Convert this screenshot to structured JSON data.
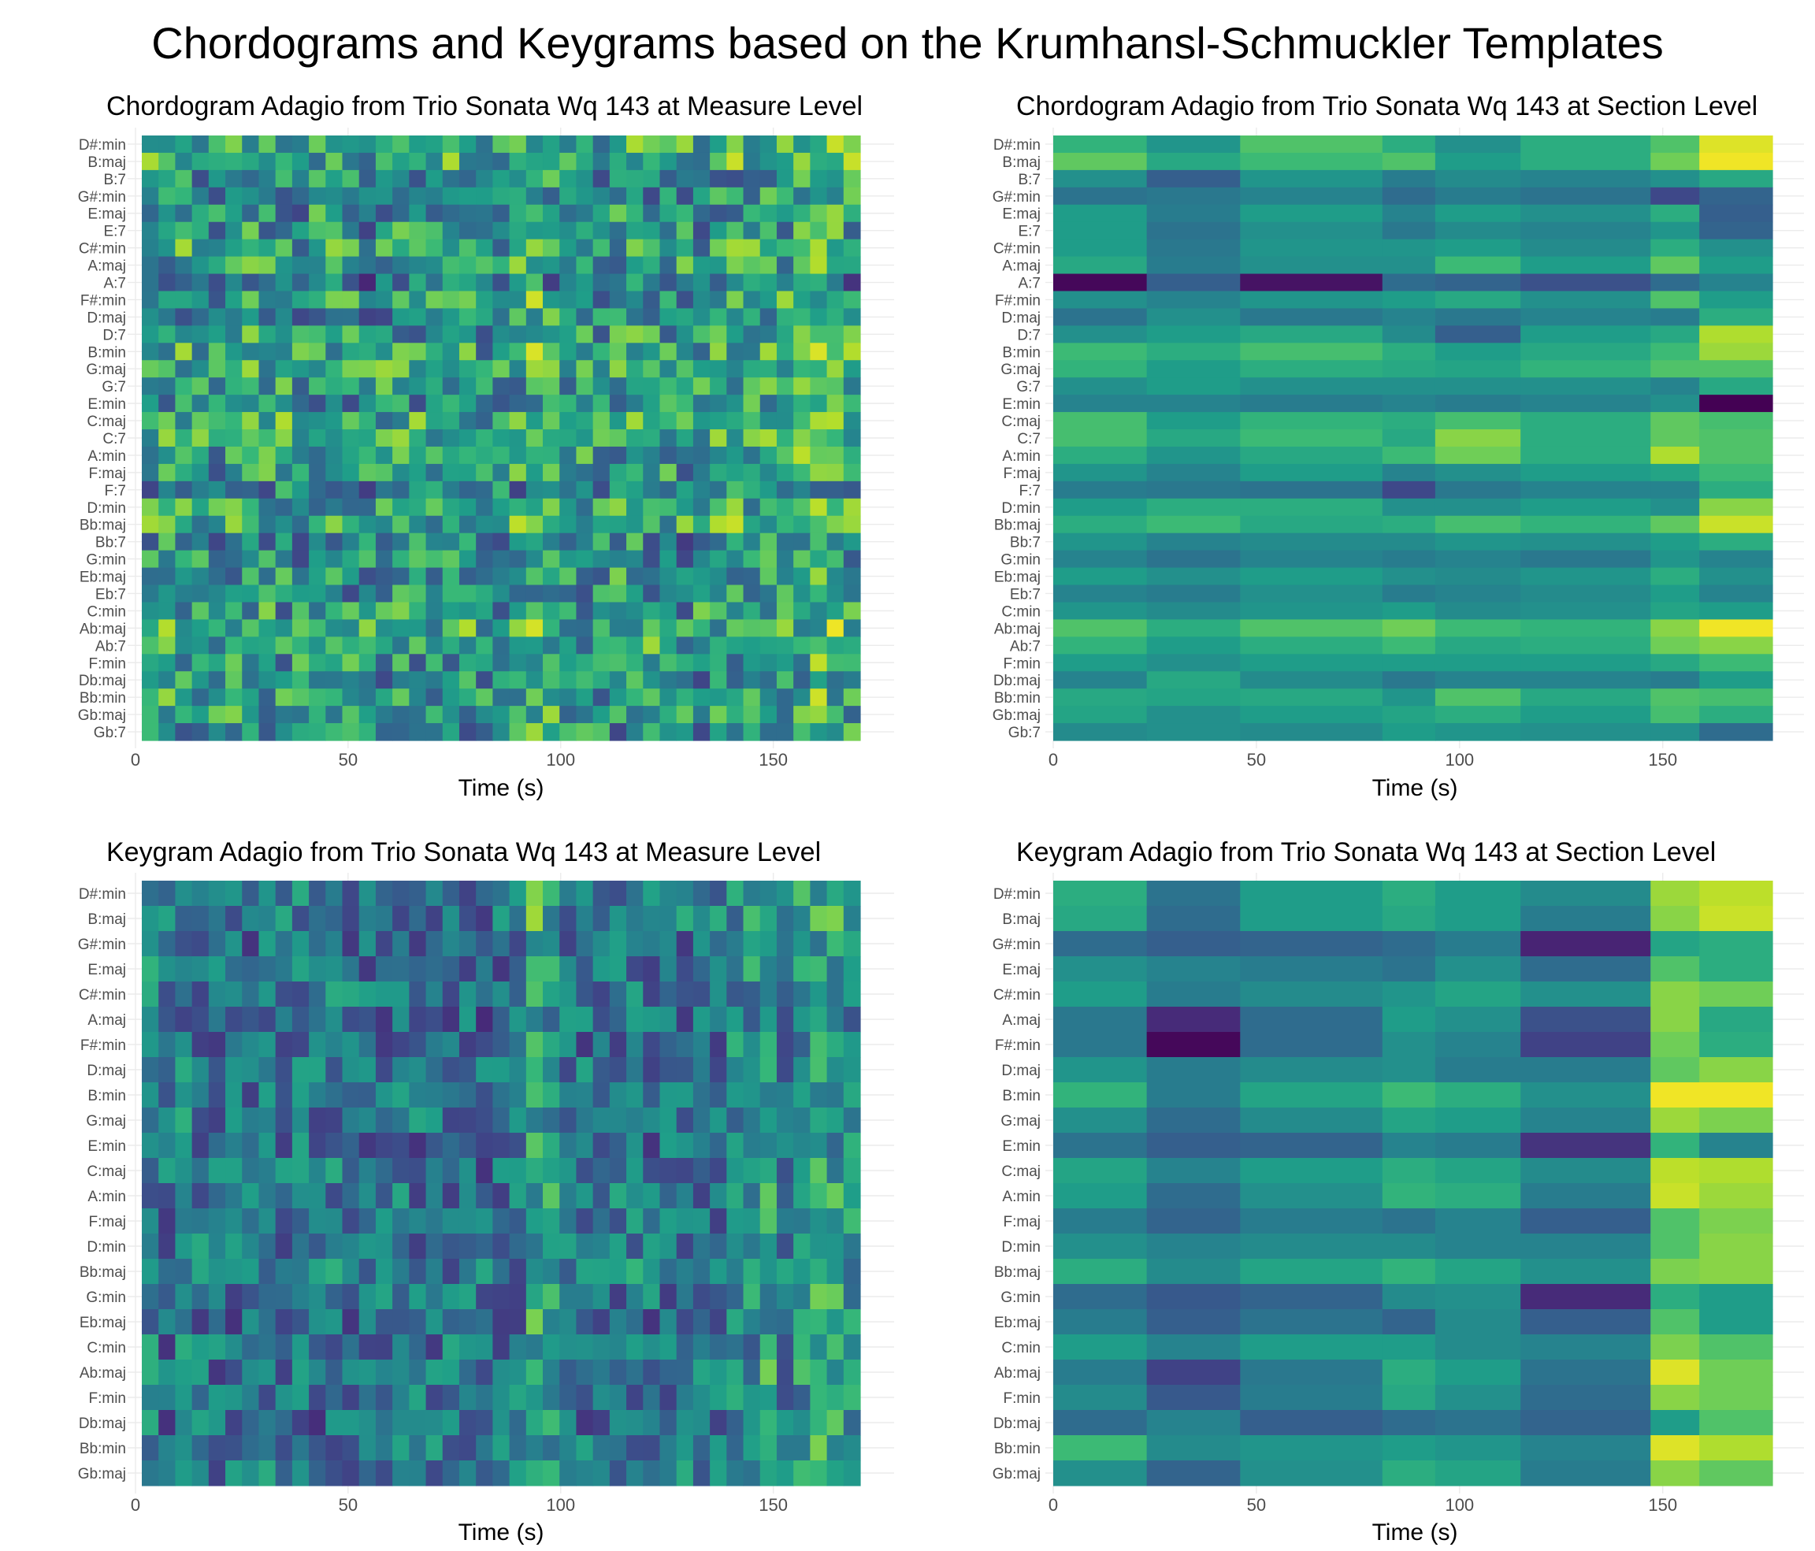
{
  "figure_title": "Chordograms and Keygrams based on the Krumhansl-Schmuckler Templates",
  "colormap": {
    "name": "viridis",
    "stops": [
      "#440154",
      "#482878",
      "#3e4989",
      "#31688e",
      "#26828e",
      "#1f9e89",
      "#35b779",
      "#6ece58",
      "#b5de2b",
      "#fde725"
    ]
  },
  "chart_data": [
    {
      "type": "heatmap",
      "title": "Chordogram Adagio from Trio Sonata Wq 143 at Measure Level",
      "xlabel": "Time (s)",
      "ylabel": "",
      "x_ticks": [
        0,
        50,
        100,
        150
      ],
      "xlim": [
        0,
        171
      ],
      "columns": 43,
      "y_categories": [
        "D#:min",
        "B:maj",
        "B:7",
        "G#:min",
        "E:maj",
        "E:7",
        "C#:min",
        "A:maj",
        "A:7",
        "F#:min",
        "D:maj",
        "D:7",
        "B:min",
        "G:maj",
        "G:7",
        "E:min",
        "C:maj",
        "C:7",
        "A:min",
        "F:maj",
        "F:7",
        "D:min",
        "Bb:maj",
        "Bb:7",
        "G:min",
        "Eb:maj",
        "Eb:7",
        "C:min",
        "Ab:maj",
        "Ab:7",
        "F:min",
        "Db:maj",
        "Bb:min",
        "Gb:maj",
        "Gb:7"
      ],
      "row_levels": [
        0.72,
        0.7,
        0.45,
        0.42,
        0.52,
        0.48,
        0.58,
        0.62,
        0.25,
        0.6,
        0.45,
        0.55,
        0.62,
        0.65,
        0.55,
        0.45,
        0.7,
        0.72,
        0.62,
        0.55,
        0.4,
        0.6,
        0.7,
        0.45,
        0.45,
        0.55,
        0.45,
        0.55,
        0.72,
        0.65,
        0.55,
        0.45,
        0.62,
        0.58,
        0.45
      ],
      "column_levels": [
        0.55,
        0.5,
        0.6,
        0.55,
        0.45,
        0.5,
        0.6,
        0.55,
        0.5,
        0.45,
        0.5,
        0.55,
        0.5,
        0.45,
        0.5,
        0.55,
        0.5,
        0.45,
        0.5,
        0.5,
        0.45,
        0.5,
        0.55,
        0.72,
        0.65,
        0.55,
        0.5,
        0.45,
        0.5,
        0.55,
        0.5,
        0.5,
        0.45,
        0.5,
        0.55,
        0.6,
        0.65,
        0.6,
        0.55,
        0.65,
        0.72,
        0.7,
        0.6
      ],
      "variation": 0.28,
      "seed": 11
    },
    {
      "type": "heatmap",
      "title": "Chordogram Adagio from Trio Sonata Wq 143 at Section Level",
      "xlabel": "Time (s)",
      "ylabel": "",
      "x_ticks": [
        0,
        50,
        100,
        150
      ],
      "xlim": [
        0,
        177
      ],
      "x_edges": [
        0,
        23,
        46,
        81,
        94,
        115,
        147,
        159,
        177
      ],
      "y_categories": [
        "D#:min",
        "B:maj",
        "B:7",
        "G#:min",
        "E:maj",
        "E:7",
        "C#:min",
        "A:maj",
        "A:7",
        "F#:min",
        "D:maj",
        "D:7",
        "B:min",
        "G:maj",
        "G:7",
        "E:min",
        "C:maj",
        "C:7",
        "A:min",
        "F:maj",
        "F:7",
        "D:min",
        "Bb:maj",
        "Bb:7",
        "G:min",
        "Eb:maj",
        "Eb:7",
        "C:min",
        "Ab:maj",
        "Ab:7",
        "F:min",
        "Db:maj",
        "Bb:min",
        "Gb:maj",
        "Gb:7"
      ],
      "values": [
        [
          0.65,
          0.52,
          0.72,
          0.62,
          0.5,
          0.62,
          0.72,
          0.95
        ],
        [
          0.75,
          0.6,
          0.68,
          0.72,
          0.55,
          0.62,
          0.78,
          0.98
        ],
        [
          0.5,
          0.3,
          0.52,
          0.42,
          0.48,
          0.45,
          0.5,
          0.6
        ],
        [
          0.38,
          0.4,
          0.45,
          0.35,
          0.42,
          0.38,
          0.22,
          0.32
        ],
        [
          0.55,
          0.42,
          0.55,
          0.45,
          0.55,
          0.5,
          0.62,
          0.3
        ],
        [
          0.55,
          0.38,
          0.5,
          0.4,
          0.48,
          0.45,
          0.52,
          0.32
        ],
        [
          0.55,
          0.4,
          0.52,
          0.52,
          0.55,
          0.48,
          0.62,
          0.5
        ],
        [
          0.6,
          0.42,
          0.5,
          0.5,
          0.68,
          0.55,
          0.75,
          0.55
        ],
        [
          0.02,
          0.3,
          0.05,
          0.35,
          0.32,
          0.25,
          0.35,
          0.45
        ],
        [
          0.5,
          0.45,
          0.52,
          0.55,
          0.6,
          0.5,
          0.72,
          0.55
        ],
        [
          0.38,
          0.5,
          0.4,
          0.45,
          0.4,
          0.45,
          0.42,
          0.62
        ],
        [
          0.5,
          0.55,
          0.6,
          0.48,
          0.3,
          0.55,
          0.6,
          0.88
        ],
        [
          0.68,
          0.62,
          0.7,
          0.62,
          0.55,
          0.6,
          0.68,
          0.85
        ],
        [
          0.65,
          0.55,
          0.62,
          0.6,
          0.58,
          0.65,
          0.72,
          0.72
        ],
        [
          0.5,
          0.55,
          0.5,
          0.5,
          0.5,
          0.5,
          0.45,
          0.6
        ],
        [
          0.45,
          0.45,
          0.42,
          0.45,
          0.42,
          0.45,
          0.5,
          0.0
        ],
        [
          0.7,
          0.55,
          0.65,
          0.62,
          0.7,
          0.62,
          0.75,
          0.7
        ],
        [
          0.7,
          0.6,
          0.68,
          0.6,
          0.82,
          0.62,
          0.75,
          0.72
        ],
        [
          0.62,
          0.52,
          0.6,
          0.68,
          0.78,
          0.62,
          0.88,
          0.72
        ],
        [
          0.52,
          0.45,
          0.55,
          0.45,
          0.5,
          0.55,
          0.58,
          0.68
        ],
        [
          0.42,
          0.4,
          0.38,
          0.22,
          0.4,
          0.45,
          0.45,
          0.62
        ],
        [
          0.55,
          0.62,
          0.62,
          0.5,
          0.5,
          0.55,
          0.5,
          0.82
        ],
        [
          0.62,
          0.68,
          0.6,
          0.62,
          0.7,
          0.65,
          0.75,
          0.92
        ],
        [
          0.52,
          0.45,
          0.48,
          0.48,
          0.52,
          0.5,
          0.55,
          0.62
        ],
        [
          0.45,
          0.38,
          0.45,
          0.42,
          0.45,
          0.4,
          0.52,
          0.45
        ],
        [
          0.55,
          0.5,
          0.55,
          0.5,
          0.48,
          0.52,
          0.62,
          0.5
        ],
        [
          0.45,
          0.42,
          0.5,
          0.42,
          0.45,
          0.48,
          0.55,
          0.45
        ],
        [
          0.52,
          0.48,
          0.52,
          0.55,
          0.48,
          0.5,
          0.58,
          0.55
        ],
        [
          0.72,
          0.62,
          0.72,
          0.78,
          0.68,
          0.65,
          0.82,
          0.98
        ],
        [
          0.65,
          0.55,
          0.62,
          0.68,
          0.6,
          0.62,
          0.78,
          0.82
        ],
        [
          0.55,
          0.5,
          0.55,
          0.55,
          0.55,
          0.55,
          0.6,
          0.68
        ],
        [
          0.45,
          0.6,
          0.48,
          0.4,
          0.45,
          0.45,
          0.42,
          0.55
        ],
        [
          0.6,
          0.58,
          0.6,
          0.52,
          0.72,
          0.6,
          0.72,
          0.7
        ],
        [
          0.58,
          0.5,
          0.55,
          0.58,
          0.62,
          0.55,
          0.7,
          0.62
        ],
        [
          0.48,
          0.5,
          0.48,
          0.55,
          0.52,
          0.5,
          0.5,
          0.35
        ]
      ]
    },
    {
      "type": "heatmap",
      "title": "Keygram Adagio from Trio Sonata Wq 143 at Measure Level",
      "xlabel": "Time (s)",
      "ylabel": "",
      "x_ticks": [
        0,
        50,
        100,
        150
      ],
      "xlim": [
        0,
        171
      ],
      "columns": 43,
      "y_categories": [
        "D#:min",
        "B:maj",
        "G#:min",
        "E:maj",
        "C#:min",
        "A:maj",
        "F#:min",
        "D:maj",
        "B:min",
        "G:maj",
        "E:min",
        "C:maj",
        "A:min",
        "F:maj",
        "D:min",
        "Bb:maj",
        "G:min",
        "Eb:maj",
        "C:min",
        "Ab:maj",
        "F:min",
        "Db:maj",
        "Bb:min",
        "Gb:maj"
      ],
      "row_levels": [
        0.45,
        0.45,
        0.35,
        0.4,
        0.42,
        0.32,
        0.35,
        0.42,
        0.42,
        0.42,
        0.32,
        0.42,
        0.4,
        0.38,
        0.4,
        0.45,
        0.38,
        0.35,
        0.42,
        0.4,
        0.38,
        0.35,
        0.42,
        0.42
      ],
      "column_levels": [
        0.5,
        0.3,
        0.48,
        0.42,
        0.35,
        0.32,
        0.35,
        0.4,
        0.38,
        0.42,
        0.35,
        0.4,
        0.35,
        0.32,
        0.4,
        0.35,
        0.4,
        0.35,
        0.38,
        0.35,
        0.3,
        0.32,
        0.38,
        0.82,
        0.72,
        0.45,
        0.38,
        0.32,
        0.4,
        0.45,
        0.38,
        0.4,
        0.42,
        0.38,
        0.4,
        0.52,
        0.55,
        0.82,
        0.45,
        0.62,
        0.78,
        0.72,
        0.62
      ],
      "variation": 0.22,
      "seed": 23
    },
    {
      "type": "heatmap",
      "title": "Keygram Adagio from Trio Sonata Wq 143 at Section Level",
      "xlabel": "Time (s)",
      "ylabel": "",
      "x_ticks": [
        0,
        50,
        100,
        150
      ],
      "xlim": [
        0,
        177
      ],
      "x_edges": [
        0,
        23,
        46,
        81,
        94,
        115,
        147,
        159,
        177
      ],
      "y_categories": [
        "D#:min",
        "B:maj",
        "G#:min",
        "E:maj",
        "C#:min",
        "A:maj",
        "F#:min",
        "D:maj",
        "B:min",
        "G:maj",
        "E:min",
        "C:maj",
        "A:min",
        "F:maj",
        "D:min",
        "Bb:maj",
        "G:min",
        "Eb:maj",
        "C:min",
        "Ab:maj",
        "F:min",
        "Db:maj",
        "Bb:min",
        "Gb:maj"
      ],
      "values": [
        [
          0.62,
          0.38,
          0.55,
          0.62,
          0.55,
          0.48,
          0.85,
          0.9
        ],
        [
          0.6,
          0.35,
          0.55,
          0.6,
          0.55,
          0.42,
          0.82,
          0.92
        ],
        [
          0.35,
          0.3,
          0.32,
          0.35,
          0.42,
          0.1,
          0.58,
          0.62
        ],
        [
          0.5,
          0.45,
          0.42,
          0.38,
          0.5,
          0.35,
          0.72,
          0.62
        ],
        [
          0.55,
          0.42,
          0.48,
          0.52,
          0.58,
          0.5,
          0.82,
          0.78
        ],
        [
          0.4,
          0.12,
          0.35,
          0.55,
          0.5,
          0.25,
          0.82,
          0.6
        ],
        [
          0.4,
          0.02,
          0.35,
          0.5,
          0.45,
          0.2,
          0.78,
          0.62
        ],
        [
          0.52,
          0.42,
          0.48,
          0.5,
          0.42,
          0.42,
          0.75,
          0.82
        ],
        [
          0.65,
          0.42,
          0.58,
          0.68,
          0.62,
          0.5,
          0.98,
          0.98
        ],
        [
          0.5,
          0.35,
          0.48,
          0.58,
          0.55,
          0.45,
          0.85,
          0.8
        ],
        [
          0.38,
          0.3,
          0.32,
          0.45,
          0.42,
          0.15,
          0.65,
          0.45
        ],
        [
          0.58,
          0.45,
          0.55,
          0.62,
          0.58,
          0.48,
          0.9,
          0.88
        ],
        [
          0.55,
          0.35,
          0.5,
          0.65,
          0.62,
          0.42,
          0.92,
          0.85
        ],
        [
          0.42,
          0.32,
          0.42,
          0.38,
          0.45,
          0.3,
          0.72,
          0.8
        ],
        [
          0.5,
          0.45,
          0.48,
          0.48,
          0.45,
          0.45,
          0.72,
          0.82
        ],
        [
          0.62,
          0.48,
          0.58,
          0.65,
          0.58,
          0.5,
          0.8,
          0.82
        ],
        [
          0.35,
          0.28,
          0.32,
          0.48,
          0.5,
          0.12,
          0.62,
          0.55
        ],
        [
          0.42,
          0.3,
          0.38,
          0.32,
          0.48,
          0.3,
          0.72,
          0.55
        ],
        [
          0.55,
          0.45,
          0.55,
          0.55,
          0.48,
          0.45,
          0.8,
          0.72
        ],
        [
          0.42,
          0.2,
          0.4,
          0.62,
          0.55,
          0.38,
          0.95,
          0.78
        ],
        [
          0.48,
          0.28,
          0.42,
          0.6,
          0.5,
          0.35,
          0.82,
          0.78
        ],
        [
          0.35,
          0.45,
          0.3,
          0.35,
          0.38,
          0.32,
          0.55,
          0.72
        ],
        [
          0.68,
          0.48,
          0.52,
          0.55,
          0.52,
          0.45,
          0.95,
          0.88
        ],
        [
          0.5,
          0.32,
          0.5,
          0.62,
          0.58,
          0.42,
          0.82,
          0.75
        ]
      ]
    }
  ]
}
